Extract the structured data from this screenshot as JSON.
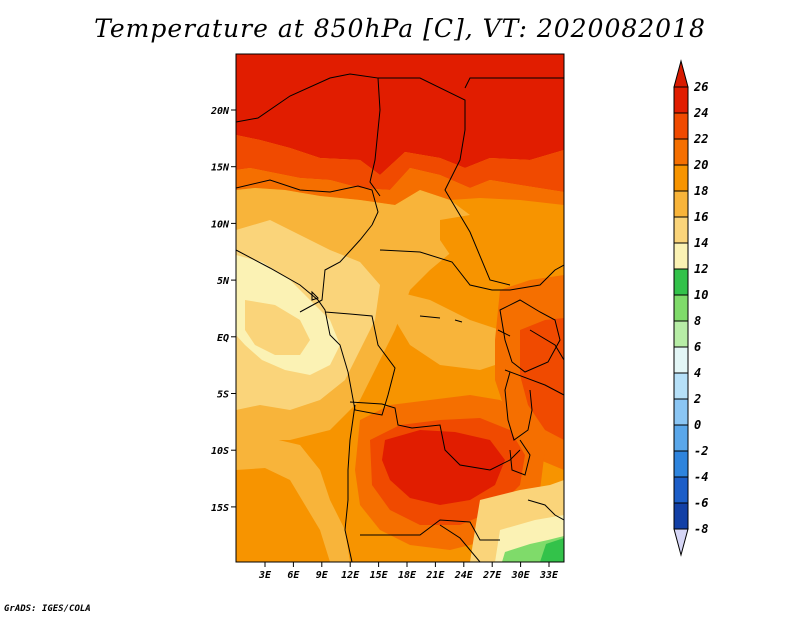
{
  "title": "Temperature at 850hPa [C], VT: 2020082018",
  "credit": "GrADS: IGES/COLA",
  "map": {
    "lat_ticks": [
      "20N",
      "15N",
      "10N",
      "5N",
      "EQ",
      "5S",
      "10S",
      "15S"
    ],
    "lon_ticks": [
      "3E",
      "6E",
      "9E",
      "12E",
      "15E",
      "18E",
      "21E",
      "24E",
      "27E",
      "30E",
      "33E"
    ]
  },
  "colorbar": {
    "labels": [
      "26",
      "24",
      "22",
      "20",
      "18",
      "16",
      "14",
      "12",
      "10",
      "8",
      "6",
      "4",
      "2",
      "0",
      "-2",
      "-4",
      "-6",
      "-8"
    ],
    "colors": [
      "#e11d00",
      "#f04a00",
      "#f56f00",
      "#f79400",
      "#f8b43a",
      "#fad47a",
      "#fbf2b4",
      "#33c24a",
      "#7fdb6a",
      "#b7eda6",
      "#e3f6f6",
      "#b6e0f8",
      "#8bc6f4",
      "#5aa7ea",
      "#2e84dd",
      "#1c5ec8",
      "#1240a6",
      "#0b1f78"
    ],
    "top_arrow_color": "#d81a00",
    "bottom_arrow_color": "#d6d6f6"
  },
  "colors": {
    "t26": "#e11d00",
    "t24": "#f04a00",
    "t22": "#f56f00",
    "t20": "#f79400",
    "t18": "#f8b43a",
    "t16": "#fad47a",
    "t14": "#fbf2b4",
    "t12": "#33c24a",
    "t10": "#7fdb6a"
  }
}
